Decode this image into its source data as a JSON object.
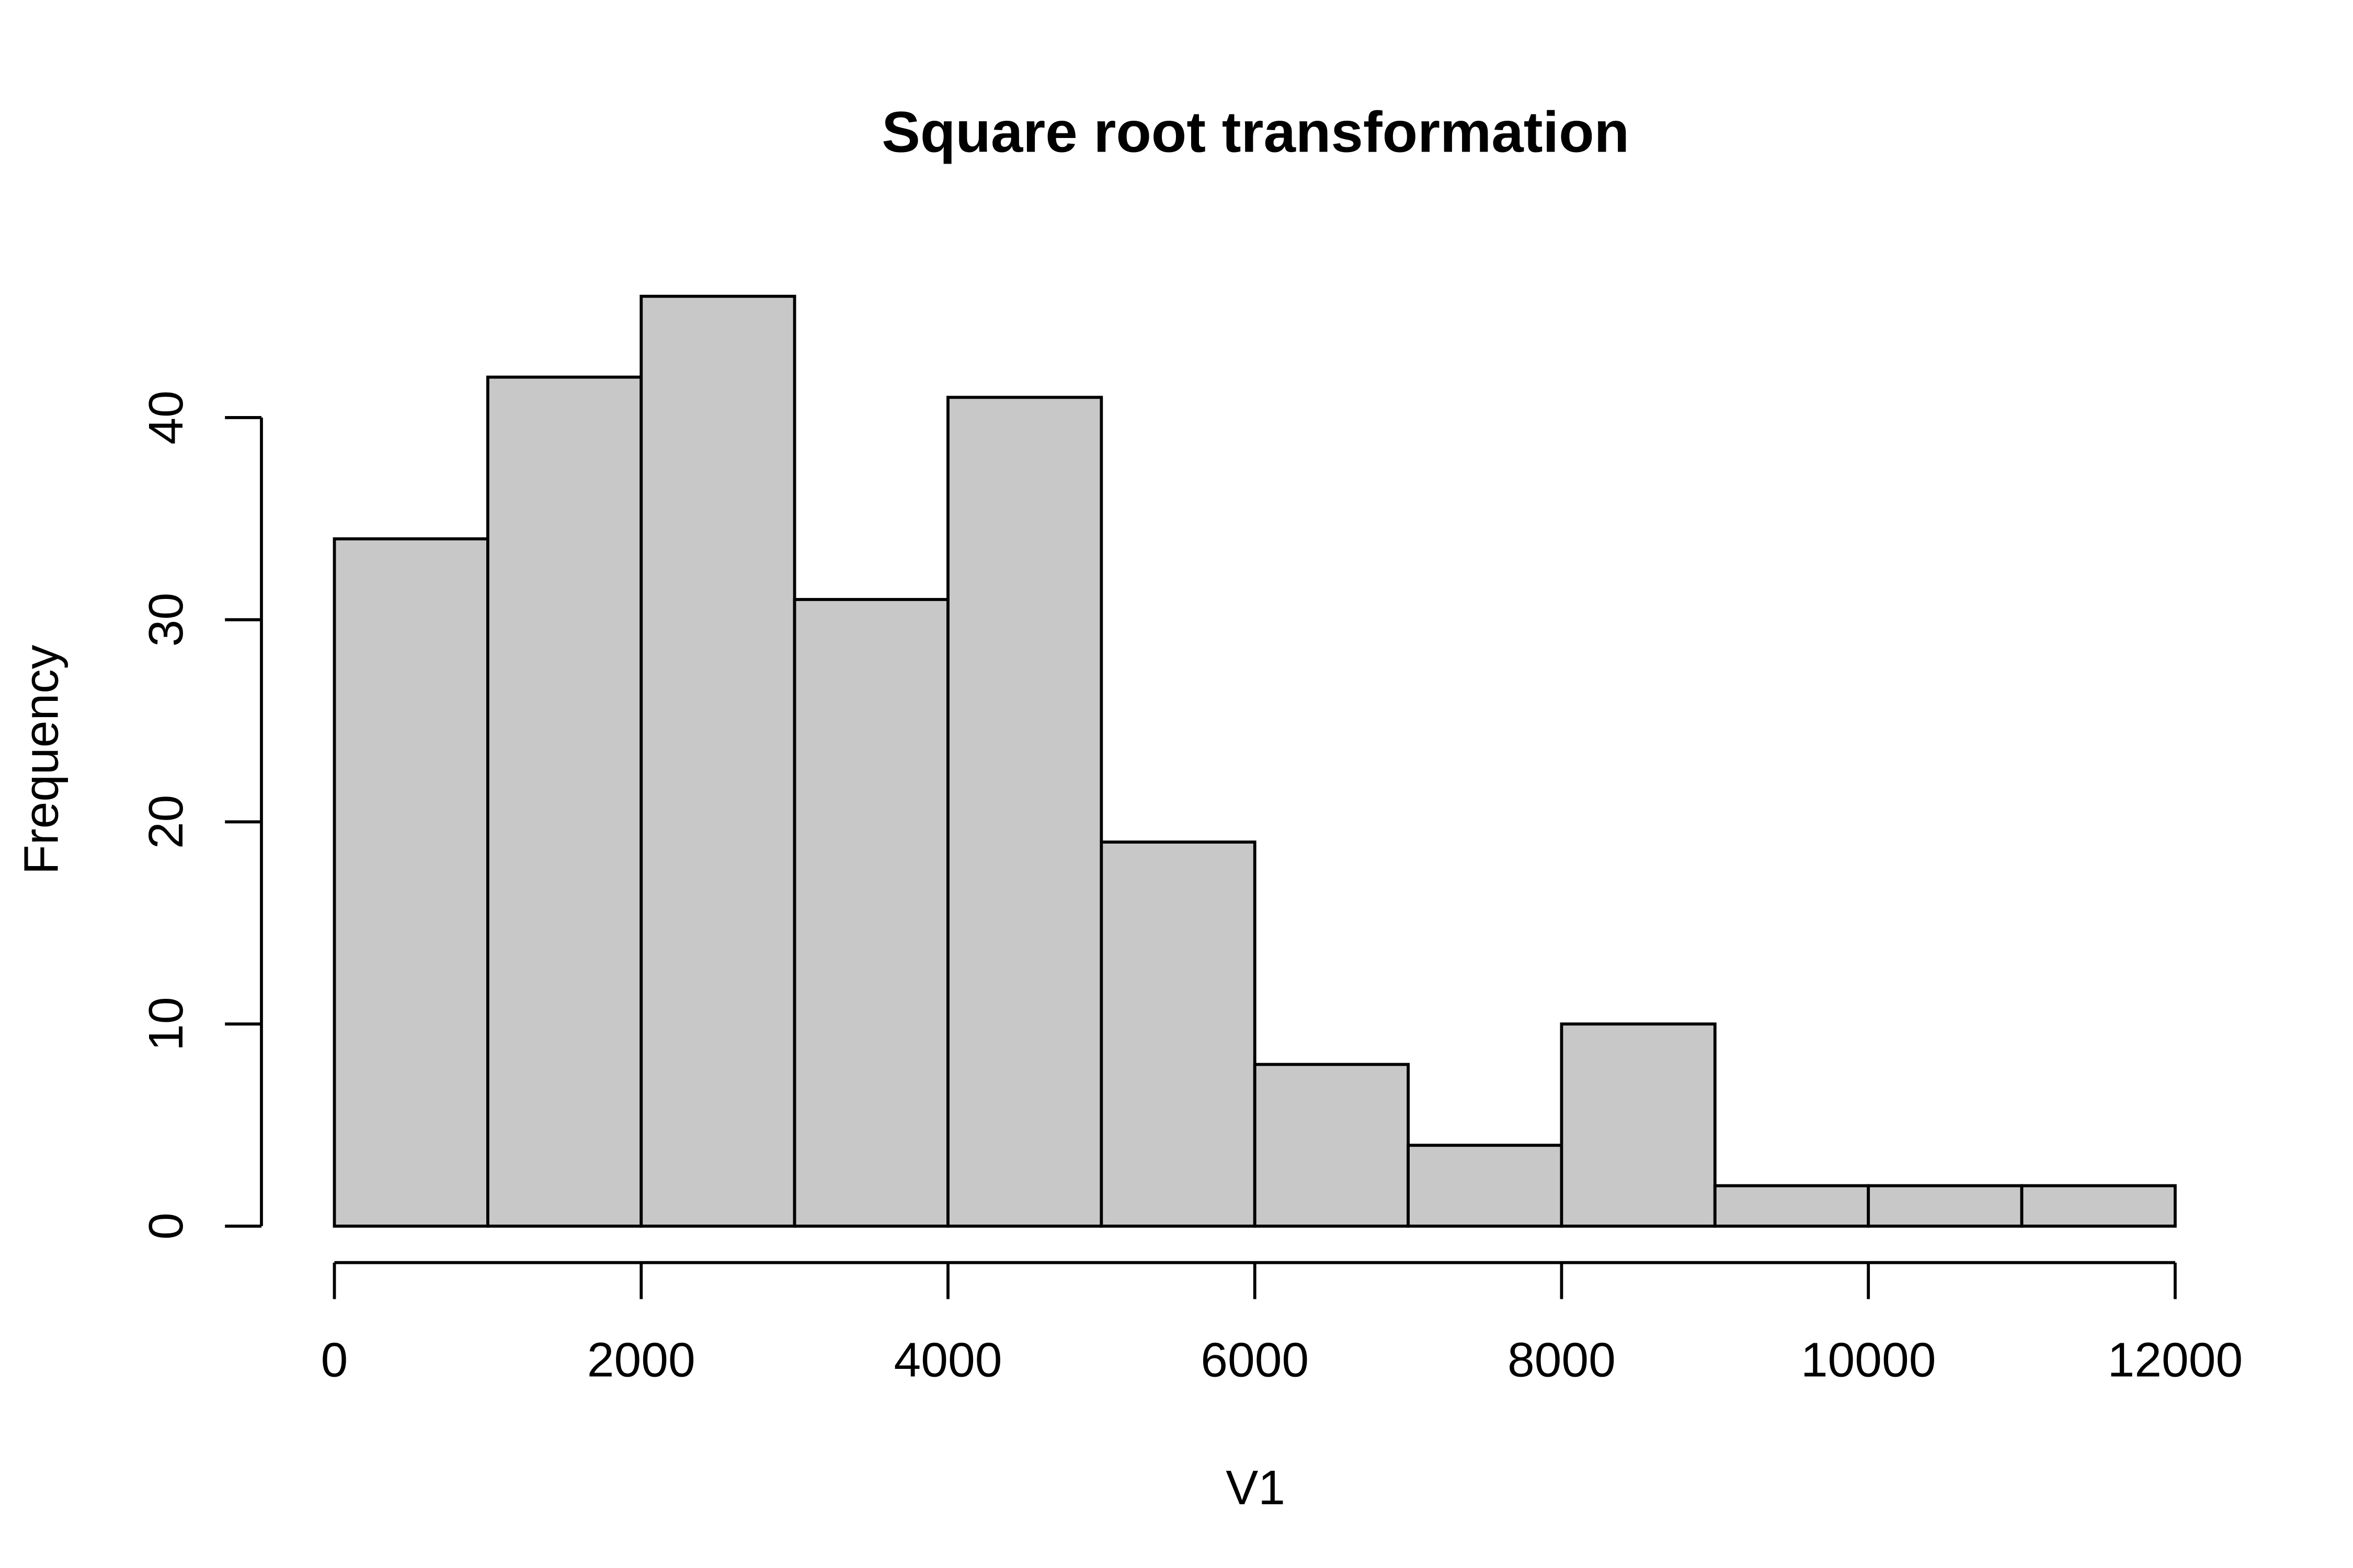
{
  "chart_data": {
    "type": "histogram",
    "title": "Square root transformation",
    "x_label": "V1",
    "y_label": "Frequency",
    "bins": [
      0,
      1000,
      2000,
      3000,
      4000,
      5000,
      6000,
      7000,
      8000,
      9000,
      10000,
      11000,
      12000
    ],
    "values": [
      34,
      42,
      46,
      31,
      41,
      19,
      8,
      4,
      10,
      2,
      2,
      2
    ],
    "color": "#c8c8c8",
    "xlim": [
      0,
      12000
    ],
    "xticks": [
      0,
      2000,
      4000,
      6000,
      8000,
      10000,
      12000
    ],
    "ylim": [
      0,
      46
    ],
    "yticks": [
      0,
      10,
      20,
      30,
      40
    ]
  }
}
